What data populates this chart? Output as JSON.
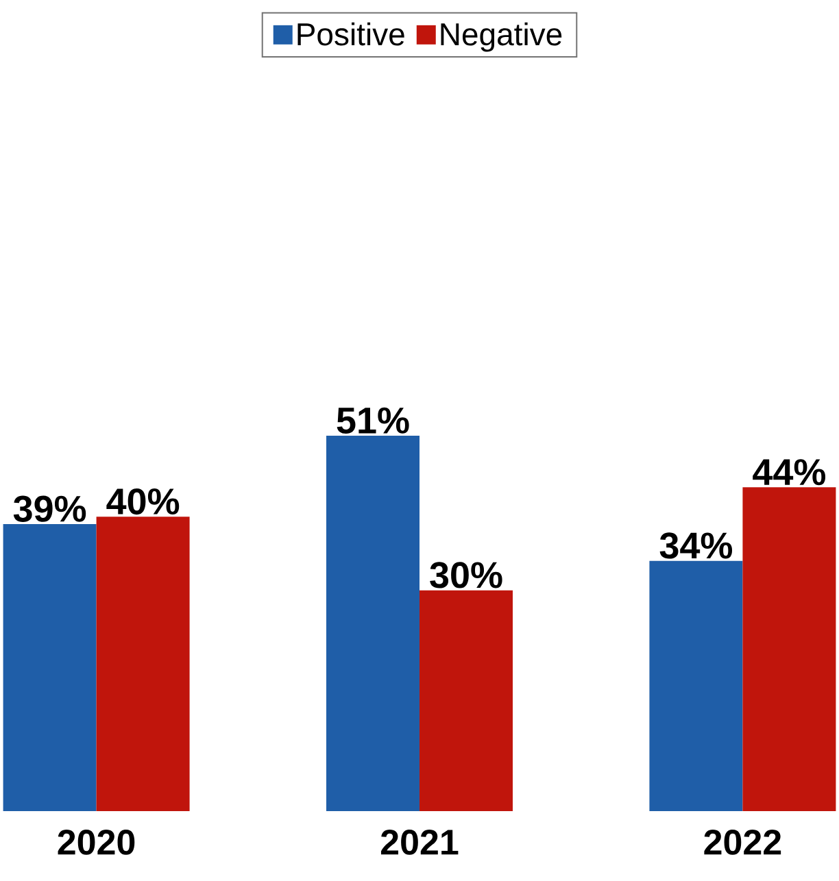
{
  "chart_data": {
    "type": "bar",
    "categories": [
      "2020",
      "2021",
      "2022"
    ],
    "legend": "top",
    "series": [
      {
        "name": "Positive",
        "color": "#1f5ea8",
        "values": [
          39,
          51,
          34
        ],
        "value_labels": [
          "39%",
          "51%",
          "34%"
        ]
      },
      {
        "name": "Negative",
        "color": "#c0150c",
        "values": [
          40,
          30,
          44
        ],
        "value_labels": [
          "40%",
          "30%",
          "44%"
        ]
      }
    ]
  }
}
